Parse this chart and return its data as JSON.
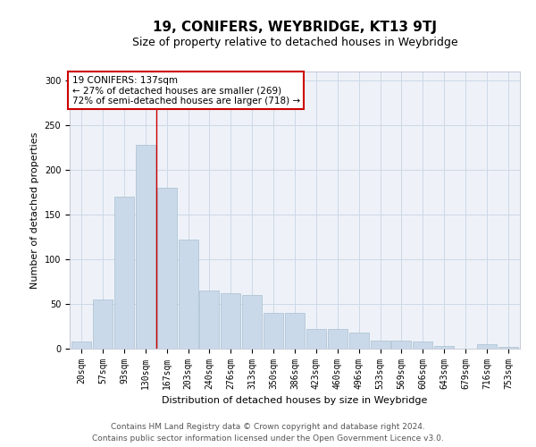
{
  "title": "19, CONIFERS, WEYBRIDGE, KT13 9TJ",
  "subtitle": "Size of property relative to detached houses in Weybridge",
  "xlabel": "Distribution of detached houses by size in Weybridge",
  "ylabel": "Number of detached properties",
  "categories": [
    "20sqm",
    "57sqm",
    "93sqm",
    "130sqm",
    "167sqm",
    "203sqm",
    "240sqm",
    "276sqm",
    "313sqm",
    "350sqm",
    "386sqm",
    "423sqm",
    "460sqm",
    "496sqm",
    "533sqm",
    "569sqm",
    "606sqm",
    "643sqm",
    "679sqm",
    "716sqm",
    "753sqm"
  ],
  "values": [
    8,
    55,
    170,
    228,
    180,
    122,
    65,
    62,
    60,
    40,
    40,
    22,
    22,
    18,
    9,
    9,
    8,
    3,
    0,
    5,
    2
  ],
  "bar_color": "#c9d9ea",
  "bar_edge_color": "#a8bfcf",
  "vline_index": 3,
  "vline_color": "#cc0000",
  "annotation_title": "19 CONIFERS: 137sqm",
  "annotation_line1": "← 27% of detached houses are smaller (269)",
  "annotation_line2": "72% of semi-detached houses are larger (718) →",
  "annotation_box_facecolor": "#ffffff",
  "annotation_box_edgecolor": "#cc0000",
  "grid_color": "#cdd8e6",
  "background_color": "#eef2f8",
  "footer_line1": "Contains HM Land Registry data © Crown copyright and database right 2024.",
  "footer_line2": "Contains public sector information licensed under the Open Government Licence v3.0.",
  "ylim": [
    0,
    310
  ],
  "yticks": [
    0,
    50,
    100,
    150,
    200,
    250,
    300
  ],
  "title_fontsize": 11,
  "subtitle_fontsize": 9,
  "ylabel_fontsize": 8,
  "xlabel_fontsize": 8,
  "tick_fontsize": 7,
  "annotation_fontsize": 7.5,
  "footer_fontsize": 6.5
}
